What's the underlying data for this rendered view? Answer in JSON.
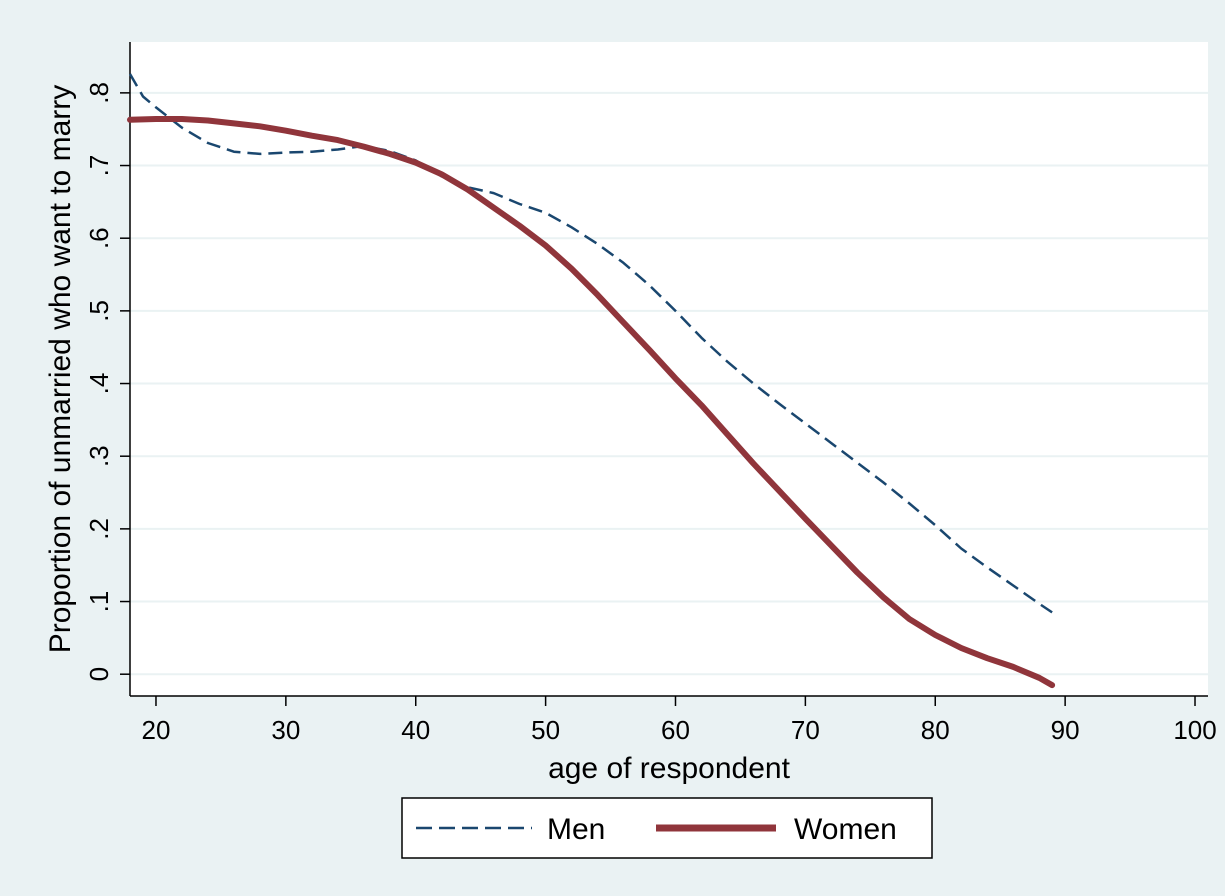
{
  "chart_data": {
    "type": "line",
    "xlabel": "age of respondent",
    "ylabel": "Proportion of unmarried who want to marry",
    "xlim": [
      18,
      101
    ],
    "ylim": [
      -0.03,
      0.87
    ],
    "x_ticks": [
      20,
      30,
      40,
      50,
      60,
      70,
      80,
      90,
      100
    ],
    "x_tick_labels": [
      "20",
      "30",
      "40",
      "50",
      "60",
      "70",
      "80",
      "90",
      "100"
    ],
    "y_ticks": [
      0,
      0.1,
      0.2,
      0.3,
      0.4,
      0.5,
      0.6,
      0.7,
      0.8
    ],
    "y_tick_labels": [
      "0",
      ".1",
      ".2",
      ".3",
      ".4",
      ".5",
      ".6",
      ".7",
      ".8"
    ],
    "grid": true,
    "legend_position": "bottom-center",
    "background_color": "#eaf2f3",
    "plot_background_color": "#ffffff",
    "grid_color": "#eaf2f3",
    "series": [
      {
        "name": "Men",
        "color": "#1a476f",
        "style": "dashed",
        "x": [
          18,
          19,
          20,
          22,
          24,
          26,
          28,
          30,
          32,
          34,
          36,
          38,
          40,
          42,
          44,
          46,
          48,
          50,
          52,
          54,
          56,
          58,
          60,
          62,
          64,
          66,
          68,
          70,
          72,
          74,
          76,
          78,
          80,
          82,
          84,
          86,
          88,
          89
        ],
        "y": [
          0.826,
          0.795,
          0.78,
          0.752,
          0.731,
          0.719,
          0.716,
          0.718,
          0.719,
          0.722,
          0.727,
          0.72,
          0.707,
          0.685,
          0.67,
          0.662,
          0.647,
          0.635,
          0.615,
          0.592,
          0.566,
          0.535,
          0.5,
          0.463,
          0.43,
          0.4,
          0.372,
          0.345,
          0.318,
          0.291,
          0.264,
          0.235,
          0.205,
          0.173,
          0.147,
          0.122,
          0.097,
          0.085
        ]
      },
      {
        "name": "Women",
        "color": "#90353b",
        "style": "solid",
        "x": [
          18,
          20,
          22,
          24,
          26,
          28,
          30,
          32,
          34,
          36,
          38,
          40,
          42,
          44,
          46,
          48,
          50,
          52,
          54,
          56,
          58,
          60,
          62,
          64,
          66,
          68,
          70,
          72,
          74,
          76,
          78,
          80,
          82,
          84,
          86,
          88,
          89
        ],
        "y": [
          0.763,
          0.764,
          0.764,
          0.762,
          0.758,
          0.754,
          0.748,
          0.741,
          0.735,
          0.726,
          0.716,
          0.704,
          0.688,
          0.667,
          0.642,
          0.617,
          0.59,
          0.558,
          0.522,
          0.484,
          0.446,
          0.407,
          0.37,
          0.33,
          0.29,
          0.252,
          0.214,
          0.177,
          0.14,
          0.106,
          0.076,
          0.054,
          0.036,
          0.022,
          0.01,
          -0.005,
          -0.015
        ]
      }
    ]
  }
}
